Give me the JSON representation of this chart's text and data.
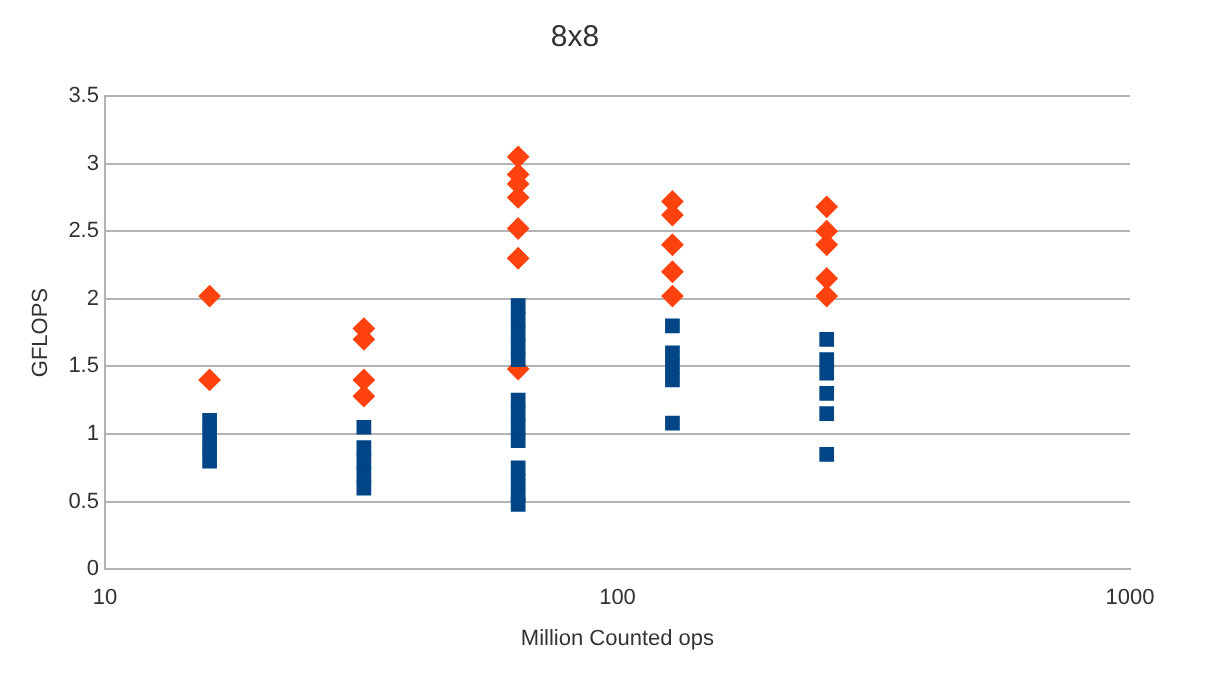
{
  "chart_data": {
    "type": "scatter",
    "title": "8x8",
    "xlabel": "Million Counted ops",
    "ylabel": "GFLOPS",
    "log": "x",
    "xlim": [
      10,
      1000
    ],
    "xticks": [
      10,
      100,
      1000
    ],
    "ylim": [
      0,
      3.5
    ],
    "yticks": [
      0,
      0.5,
      1,
      1.5,
      2,
      2.5,
      3,
      3.5
    ],
    "grid": "y",
    "legend": false,
    "series": [
      {
        "color": "#004586",
        "marker": "square",
        "x": [
          16,
          16,
          16,
          16,
          32,
          32,
          32,
          32,
          32,
          64,
          64,
          64,
          64,
          64,
          64,
          64,
          64,
          64,
          64,
          64,
          64,
          64,
          128,
          128,
          128,
          128,
          128,
          256,
          256,
          256,
          256,
          256,
          256
        ],
        "values": [
          0.8,
          0.9,
          1.0,
          1.1,
          0.6,
          0.7,
          0.8,
          0.9,
          1.05,
          0.48,
          0.55,
          0.65,
          0.75,
          0.95,
          1.05,
          1.15,
          1.25,
          1.55,
          1.65,
          1.75,
          1.85,
          1.95,
          1.08,
          1.4,
          1.5,
          1.6,
          1.8,
          0.85,
          1.15,
          1.3,
          1.45,
          1.55,
          1.7
        ]
      },
      {
        "color": "#ff420e",
        "marker": "diamond",
        "x": [
          16,
          16,
          32,
          32,
          32,
          32,
          64,
          64,
          64,
          64,
          64,
          64,
          64,
          128,
          128,
          128,
          128,
          128,
          256,
          256,
          256,
          256,
          256
        ],
        "values": [
          1.4,
          2.02,
          1.28,
          1.4,
          1.7,
          1.78,
          1.48,
          2.3,
          2.52,
          2.75,
          2.85,
          2.92,
          3.05,
          2.02,
          2.2,
          2.4,
          2.62,
          2.72,
          2.02,
          2.15,
          2.4,
          2.5,
          2.68
        ]
      }
    ]
  }
}
